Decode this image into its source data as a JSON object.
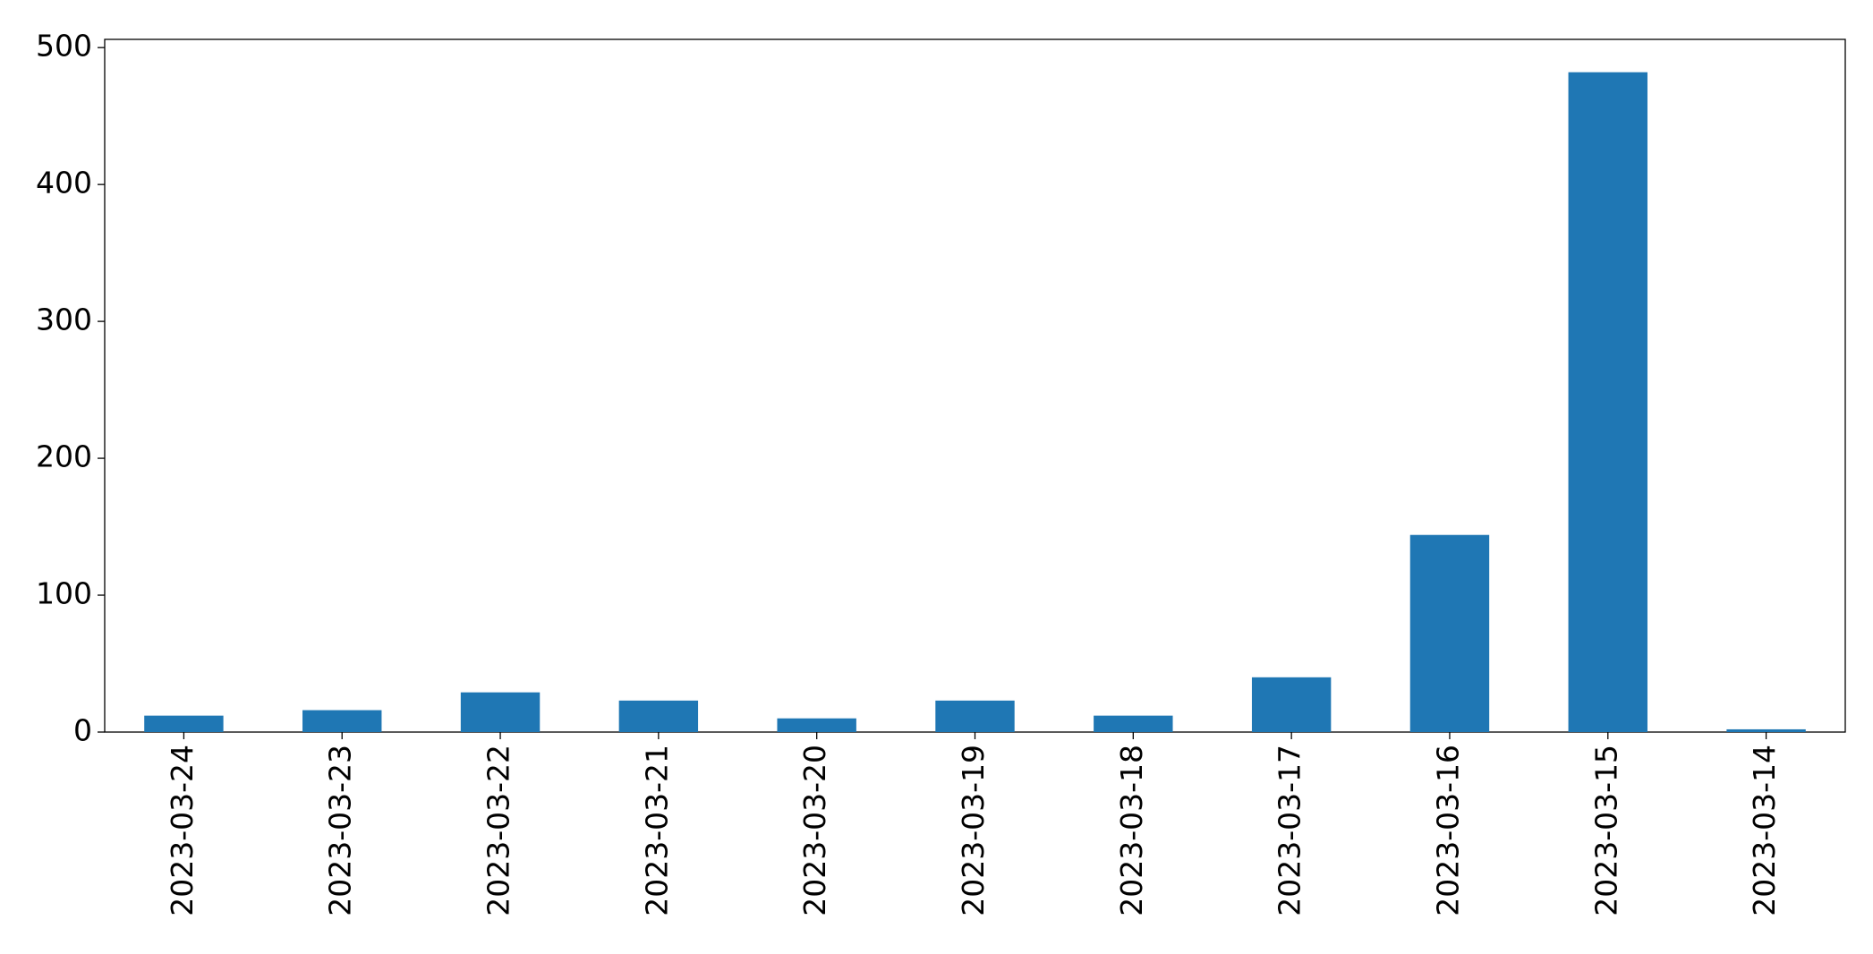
{
  "chart_data": {
    "type": "bar",
    "categories": [
      "2023-03-24",
      "2023-03-23",
      "2023-03-22",
      "2023-03-21",
      "2023-03-20",
      "2023-03-19",
      "2023-03-18",
      "2023-03-17",
      "2023-03-16",
      "2023-03-15",
      "2023-03-14"
    ],
    "values": [
      12,
      16,
      29,
      23,
      10,
      23,
      12,
      40,
      144,
      482,
      2
    ],
    "color": "#1f77b4",
    "ylim": [
      0,
      506
    ],
    "yticks": [
      0,
      100,
      200,
      300,
      400,
      500
    ],
    "grid": false
  }
}
